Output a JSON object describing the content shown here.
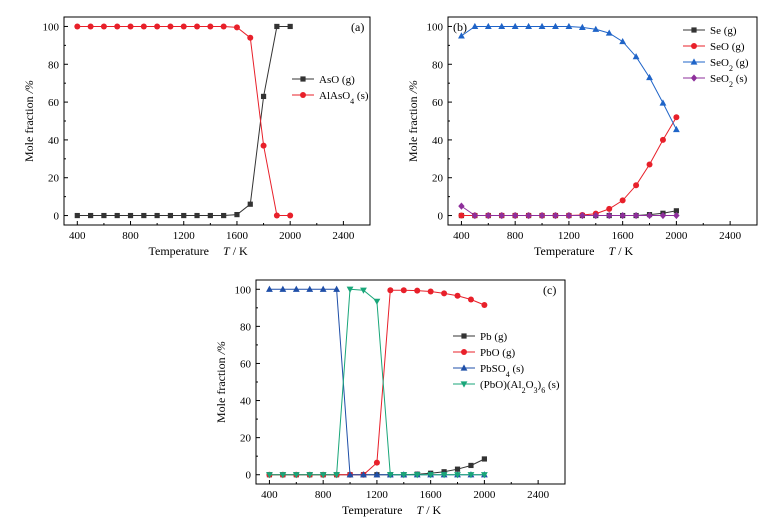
{
  "chart_data": [
    {
      "type": "line",
      "panel_label": "(a)",
      "xlabel": "Temperature",
      "xunit": "T / K",
      "ylabel": "Mole fraction",
      "yunit": "/%",
      "xlim": [
        300,
        2600
      ],
      "ylim": [
        -5,
        105
      ],
      "xticks": [
        400,
        800,
        1200,
        1600,
        2000,
        2400
      ],
      "yticks": [
        0,
        20,
        40,
        60,
        80,
        100
      ],
      "legend_position": "center-right",
      "series": [
        {
          "name": "AsO (g)",
          "marker": "square",
          "color": "#333333",
          "x": [
            400,
            500,
            600,
            700,
            800,
            900,
            1000,
            1100,
            1200,
            1300,
            1400,
            1500,
            1600,
            1700,
            1800,
            1900,
            2000
          ],
          "values": [
            0,
            0,
            0,
            0,
            0,
            0,
            0,
            0,
            0,
            0,
            0,
            0,
            0.5,
            6,
            63,
            100,
            100
          ]
        },
        {
          "name": "AlAsO4 (s)",
          "marker": "circle",
          "color": "#e8202a",
          "x": [
            400,
            500,
            600,
            700,
            800,
            900,
            1000,
            1100,
            1200,
            1300,
            1400,
            1500,
            1600,
            1700,
            1800,
            1900,
            2000
          ],
          "values": [
            100,
            100,
            100,
            100,
            100,
            100,
            100,
            100,
            100,
            100,
            100,
            100,
            99.5,
            94,
            37,
            0,
            0
          ]
        }
      ]
    },
    {
      "type": "line",
      "panel_label": "(b)",
      "xlabel": "Temperature",
      "xunit": "T / K",
      "ylabel": "Mole fraction",
      "yunit": "/%",
      "xlim": [
        300,
        2600
      ],
      "ylim": [
        -5,
        105
      ],
      "xticks": [
        400,
        800,
        1200,
        1600,
        2000,
        2400
      ],
      "yticks": [
        0,
        20,
        40,
        60,
        80,
        100
      ],
      "legend_position": "top-right",
      "series": [
        {
          "name": "Se (g)",
          "marker": "square",
          "color": "#333333",
          "x": [
            400,
            500,
            600,
            700,
            800,
            900,
            1000,
            1100,
            1200,
            1300,
            1400,
            1500,
            1600,
            1700,
            1800,
            1900,
            2000
          ],
          "values": [
            0,
            0,
            0,
            0,
            0,
            0,
            0,
            0,
            0,
            0,
            0,
            0,
            0,
            0,
            0.5,
            1.2,
            2.5
          ]
        },
        {
          "name": "SeO (g)",
          "marker": "circle",
          "color": "#e8202a",
          "x": [
            400,
            500,
            600,
            700,
            800,
            900,
            1000,
            1100,
            1200,
            1300,
            1400,
            1500,
            1600,
            1700,
            1800,
            1900,
            2000
          ],
          "values": [
            0,
            0,
            0,
            0,
            0,
            0,
            0,
            0,
            0,
            0.3,
            1,
            3.5,
            8,
            16,
            27,
            40,
            52
          ]
        },
        {
          "name": "SeO2 (g)",
          "marker": "triangle-up",
          "color": "#1f64c8",
          "x": [
            400,
            500,
            600,
            700,
            800,
            900,
            1000,
            1100,
            1200,
            1300,
            1400,
            1500,
            1600,
            1700,
            1800,
            1900,
            2000
          ],
          "values": [
            95,
            100,
            100,
            100,
            100,
            100,
            100,
            100,
            100,
            99.5,
            98.5,
            96.5,
            92,
            84,
            73,
            59.5,
            45.5
          ]
        },
        {
          "name": "SeO2 (s)",
          "marker": "diamond",
          "color": "#8e2f9b",
          "x": [
            400,
            500,
            600,
            700,
            800,
            900,
            1000,
            1100,
            1200,
            1300,
            1400,
            1500,
            1600,
            1700,
            1800,
            1900,
            2000
          ],
          "values": [
            5,
            0,
            0,
            0,
            0,
            0,
            0,
            0,
            0,
            0,
            0,
            0,
            0,
            0,
            0,
            0,
            0
          ]
        }
      ]
    },
    {
      "type": "line",
      "panel_label": "(c)",
      "xlabel": "Temperature",
      "xunit": "T / K",
      "ylabel": "Mole fraction",
      "yunit": "/%",
      "xlim": [
        300,
        2600
      ],
      "ylim": [
        -5,
        105
      ],
      "xticks": [
        400,
        800,
        1200,
        1600,
        2000,
        2400
      ],
      "yticks": [
        0,
        20,
        40,
        60,
        80,
        100
      ],
      "legend_position": "center-right",
      "series": [
        {
          "name": "Pb (g)",
          "marker": "square",
          "color": "#333333",
          "x": [
            400,
            500,
            600,
            700,
            800,
            900,
            1000,
            1100,
            1200,
            1300,
            1400,
            1500,
            1600,
            1700,
            1800,
            1900,
            2000
          ],
          "values": [
            0,
            0,
            0,
            0,
            0,
            0,
            0,
            0,
            0,
            0,
            0,
            0.3,
            0.8,
            1.6,
            3,
            5,
            8.5
          ]
        },
        {
          "name": "PbO (g)",
          "marker": "circle",
          "color": "#e8202a",
          "x": [
            400,
            500,
            600,
            700,
            800,
            900,
            1000,
            1100,
            1200,
            1300,
            1400,
            1500,
            1600,
            1700,
            1800,
            1900,
            2000
          ],
          "values": [
            0,
            0,
            0,
            0,
            0,
            0,
            0,
            0,
            6.5,
            99.5,
            99.5,
            99.3,
            98.8,
            97.8,
            96.5,
            94.5,
            91.5
          ]
        },
        {
          "name": "PbSO4 (s)",
          "marker": "triangle-up",
          "color": "#1f4fa8",
          "x": [
            400,
            500,
            600,
            700,
            800,
            900,
            1000,
            1100,
            1200,
            1300,
            1400,
            1500,
            1600,
            1700,
            1800,
            1900,
            2000
          ],
          "values": [
            100,
            100,
            100,
            100,
            100,
            100,
            0,
            0,
            0,
            0,
            0,
            0,
            0,
            0,
            0,
            0,
            0
          ]
        },
        {
          "name": "(PbO)(Al2O3)6 (s)",
          "marker": "triangle-down",
          "color": "#19a679",
          "x": [
            400,
            500,
            600,
            700,
            800,
            900,
            1000,
            1100,
            1200,
            1300,
            1400,
            1500,
            1600,
            1700,
            1800,
            1900,
            2000
          ],
          "values": [
            0,
            0,
            0,
            0,
            0,
            0,
            100,
            99.5,
            93.5,
            0,
            0,
            0,
            0,
            0,
            0,
            0,
            0
          ]
        }
      ]
    }
  ]
}
